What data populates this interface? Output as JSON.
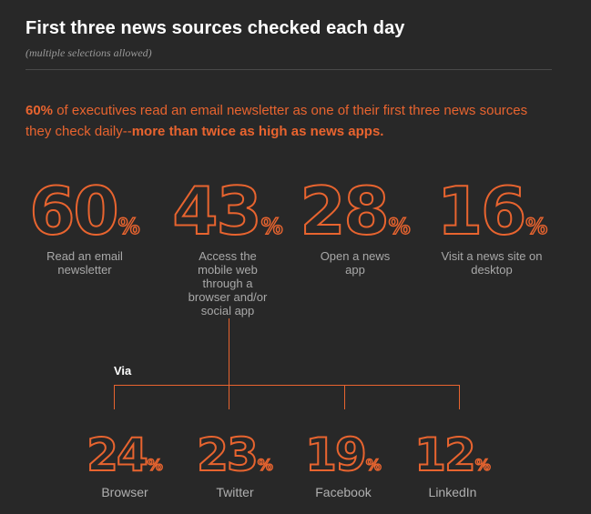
{
  "header": {
    "title": "First three news sources checked each day",
    "subtitle": "(multiple selections allowed)"
  },
  "lede": {
    "part1_bold": "60%",
    "part2": " of executives read an email newsletter as one of their first three news sources they check daily--",
    "part3_bold": "more than twice as high as news apps."
  },
  "via_label": "Via",
  "colors": {
    "accent": "#e8642f",
    "background": "#282828",
    "label": "#a8a8a8"
  },
  "chart_data": [
    {
      "type": "table",
      "title": "First three news sources checked each day",
      "categories": [
        "Read an email newsletter",
        "Access the mobile web through a browser and/or social app",
        "Open a news app",
        "Visit a news site on desktop"
      ],
      "values": [
        60,
        43,
        28,
        16
      ],
      "unit": "%",
      "items": [
        {
          "number": "60",
          "unit": "%",
          "label": "Read an email newsletter"
        },
        {
          "number": "43",
          "unit": "%",
          "label": "Access the mobile web through a browser and/or social app"
        },
        {
          "number": "28",
          "unit": "%",
          "label": "Open a news app"
        },
        {
          "number": "16",
          "unit": "%",
          "label": "Visit a news site on desktop"
        }
      ]
    },
    {
      "type": "table",
      "title": "Via",
      "categories": [
        "Browser",
        "Twitter",
        "Facebook",
        "LinkedIn"
      ],
      "values": [
        24,
        23,
        19,
        12
      ],
      "unit": "%",
      "items": [
        {
          "number": "24",
          "unit": "%",
          "label": "Browser"
        },
        {
          "number": "23",
          "unit": "%",
          "label": "Twitter"
        },
        {
          "number": "19",
          "unit": "%",
          "label": "Facebook"
        },
        {
          "number": "12",
          "unit": "%",
          "label": "LinkedIn"
        }
      ]
    }
  ]
}
